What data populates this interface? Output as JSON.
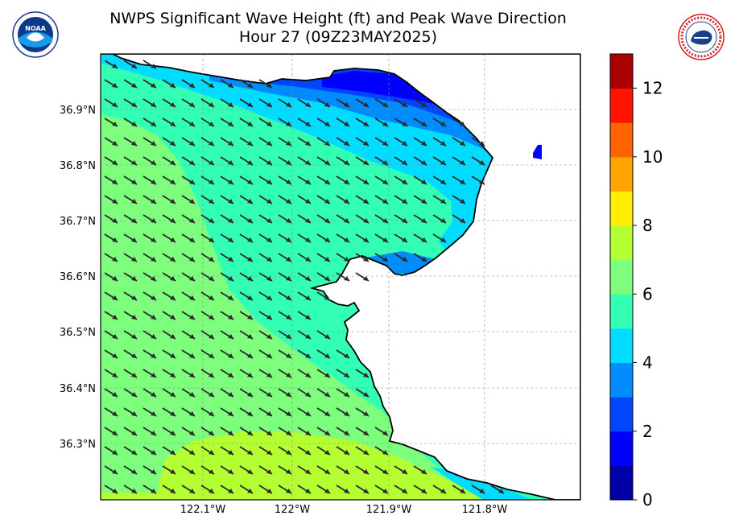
{
  "title": {
    "line1": "NWPS Significant Wave Height (ft) and Peak Wave Direction",
    "line2": "Hour 27 (09Z23MAY2025)"
  },
  "logos": {
    "left": {
      "icon": "noaa-logo-icon",
      "text": "NOAA"
    },
    "right": {
      "icon": "nws-logo-icon",
      "text": "NATIONAL WEATHER SERVICE"
    }
  },
  "map": {
    "lat_labels": [
      "36.9°N",
      "36.8°N",
      "36.7°N",
      "36.6°N",
      "36.5°N",
      "36.4°N",
      "36.3°N"
    ],
    "lon_labels": [
      "122.1°W",
      "122°W",
      "121.9°W",
      "121.8°W"
    ],
    "land_color": "#ffffff",
    "gridlines": true
  },
  "colorbar": {
    "tick_labels": [
      "0",
      "2",
      "4",
      "6",
      "8",
      "10",
      "12"
    ],
    "min": 0,
    "max": 13,
    "colors": [
      "#0000a8",
      "#0000ff",
      "#0045ff",
      "#008cff",
      "#00dcff",
      "#32ffb4",
      "#7dff7d",
      "#b4ff32",
      "#ffee00",
      "#ffa500",
      "#ff6400",
      "#ff1400",
      "#aa0000"
    ]
  },
  "chart_data": {
    "type": "heatmap",
    "title": "NWPS Significant Wave Height (ft) and Peak Wave Direction",
    "subtitle": "Hour 27 (09Z23MAY2025)",
    "colorbar_range": [
      0,
      13
    ],
    "peak_wave_direction": "arrows pointing toward the southeast (waves from the northwest)",
    "wave_height_zones_ft": [
      {
        "region": "nearshore northern bay",
        "range": [
          1,
          3
        ]
      },
      {
        "region": "northern bay",
        "range": [
          3,
          5
        ]
      },
      {
        "region": "central bay / offshore north",
        "range": [
          5,
          6
        ]
      },
      {
        "region": "offshore west and south",
        "range": [
          6,
          7
        ]
      },
      {
        "region": "southern offshore",
        "range": [
          7,
          8
        ]
      }
    ]
  }
}
